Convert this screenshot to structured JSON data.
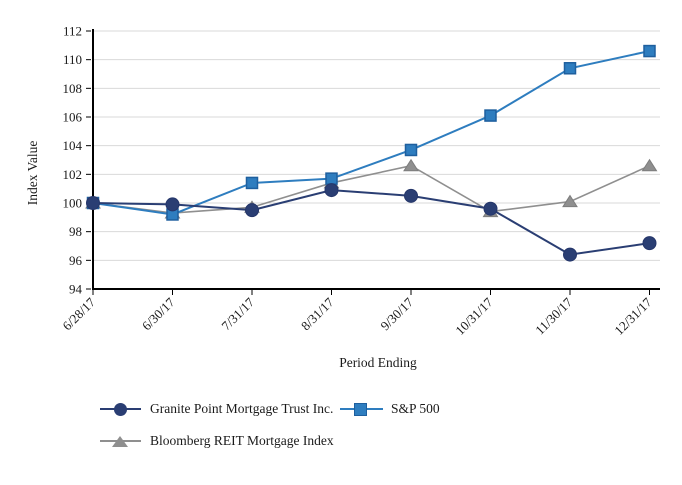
{
  "chart_data": {
    "type": "line",
    "title": "",
    "xlabel": "Period Ending",
    "ylabel": "Index Value",
    "x_categories": [
      "6/28/17",
      "6/30/17",
      "7/31/17",
      "8/31/17",
      "9/30/17",
      "10/31/17",
      "11/30/17",
      "12/31/17"
    ],
    "ylim": [
      94,
      112
    ],
    "ytick_step": 2,
    "grid": true,
    "legend_position": "bottom",
    "colors": {
      "axis": "#000000",
      "gridline": "#d9d9d9",
      "text": "#1a1a1a"
    },
    "series": [
      {
        "name": "Granite Point Mortgage Trust Inc.",
        "marker": "circle",
        "color": "#2a3e73",
        "marker_border": "#25366a",
        "line_width": 2,
        "values": [
          100.0,
          99.9,
          99.5,
          100.9,
          100.5,
          99.6,
          96.4,
          97.2
        ]
      },
      {
        "name": "S&P 500",
        "marker": "square",
        "color": "#2e7dbf",
        "marker_border": "#1e5f9e",
        "line_width": 2,
        "values": [
          100.0,
          99.2,
          101.4,
          101.7,
          103.7,
          106.1,
          109.4,
          110.6
        ]
      },
      {
        "name": "Bloomberg REIT Mortgage Index",
        "marker": "triangle",
        "color": "#8f8f8f",
        "marker_border": "#7d7d7d",
        "line_width": 1.6,
        "values": [
          100.0,
          99.3,
          99.7,
          101.4,
          102.6,
          99.4,
          100.1,
          102.6
        ]
      }
    ]
  }
}
